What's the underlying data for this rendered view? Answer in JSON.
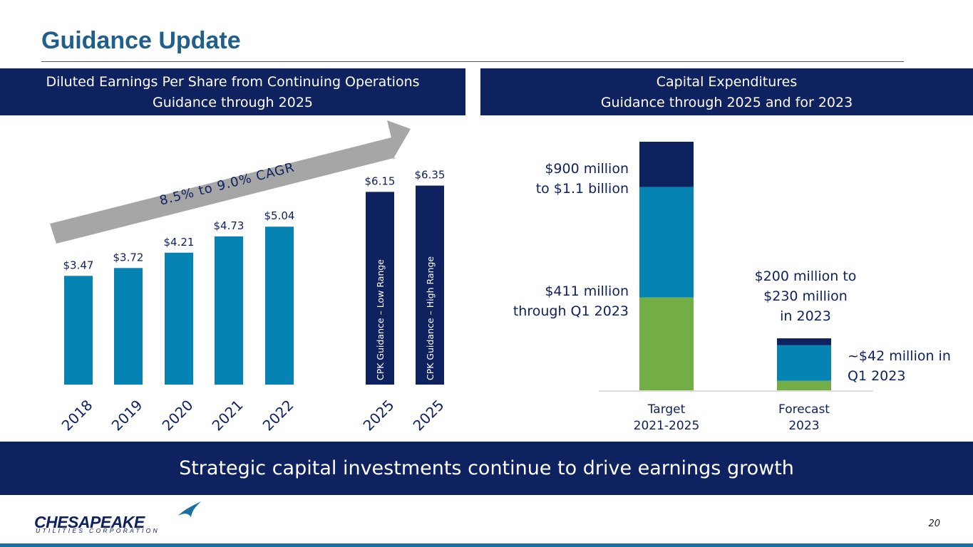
{
  "title": "Guidance Update",
  "left_panel": {
    "header_line1": "Diluted Earnings Per Share from Continuing Operations",
    "header_line2": "Guidance through 2025"
  },
  "right_panel": {
    "header_line1": "Capital Expenditures",
    "header_line2": "Guidance through 2025 and for 2023"
  },
  "footer_text": "Strategic capital investments continue to drive earnings growth",
  "page_number": "20",
  "logo": {
    "name": "CHESAPEAKE",
    "sub": "UTILITIES CORPORATION"
  },
  "colors": {
    "navy": "#0f2260",
    "teal": "#0583b3",
    "green": "#72ad45",
    "title_blue": "#1f5f8b",
    "arrow_gray": "#a6a6a6"
  },
  "chart_data": [
    {
      "type": "bar",
      "categories": [
        "2018",
        "2019",
        "2020",
        "2021",
        "2022",
        "2025",
        "2025"
      ],
      "values": [
        3.47,
        3.72,
        4.21,
        4.73,
        5.04,
        6.15,
        6.35
      ],
      "value_labels": [
        "$3.47",
        "$3.72",
        "$4.21",
        "$4.73",
        "$5.04",
        "$6.15",
        "$6.35"
      ],
      "bar_colors": [
        "#0583b3",
        "#0583b3",
        "#0583b3",
        "#0583b3",
        "#0583b3",
        "#0f2260",
        "#0f2260"
      ],
      "bar_inner_labels": [
        "",
        "",
        "",
        "",
        "",
        "CPK Guidance – Low Range",
        "CPK Guidance – High Range"
      ],
      "annotation": "8.5% to 9.0% CAGR",
      "ylim": [
        0,
        7
      ]
    },
    {
      "type": "bar",
      "stacked": true,
      "categories": [
        "Target\n2021-2025",
        "Forecast\n2023"
      ],
      "category_lines": [
        [
          "Target",
          "2021-2025"
        ],
        [
          "Forecast",
          "2023"
        ]
      ],
      "series": [
        {
          "color": "#72ad45",
          "values": [
            411,
            42
          ]
        },
        {
          "color": "#0583b3",
          "values": [
            489,
            158
          ]
        },
        {
          "color": "#0f2260",
          "values": [
            200,
            30
          ]
        }
      ],
      "totals": [
        1100,
        230
      ],
      "annotations": {
        "target_total_line1": "$900 million",
        "target_total_line2": "to $1.1 billion",
        "target_actual_line1": "$411 million",
        "target_actual_line2": "through Q1 2023",
        "forecast_total_line1": "$200 million to",
        "forecast_total_line2": "$230 million",
        "forecast_total_line3": "in 2023",
        "forecast_actual_line1": "~$42 million in",
        "forecast_actual_line2": "Q1 2023"
      },
      "ylim": [
        0,
        1100
      ]
    }
  ]
}
